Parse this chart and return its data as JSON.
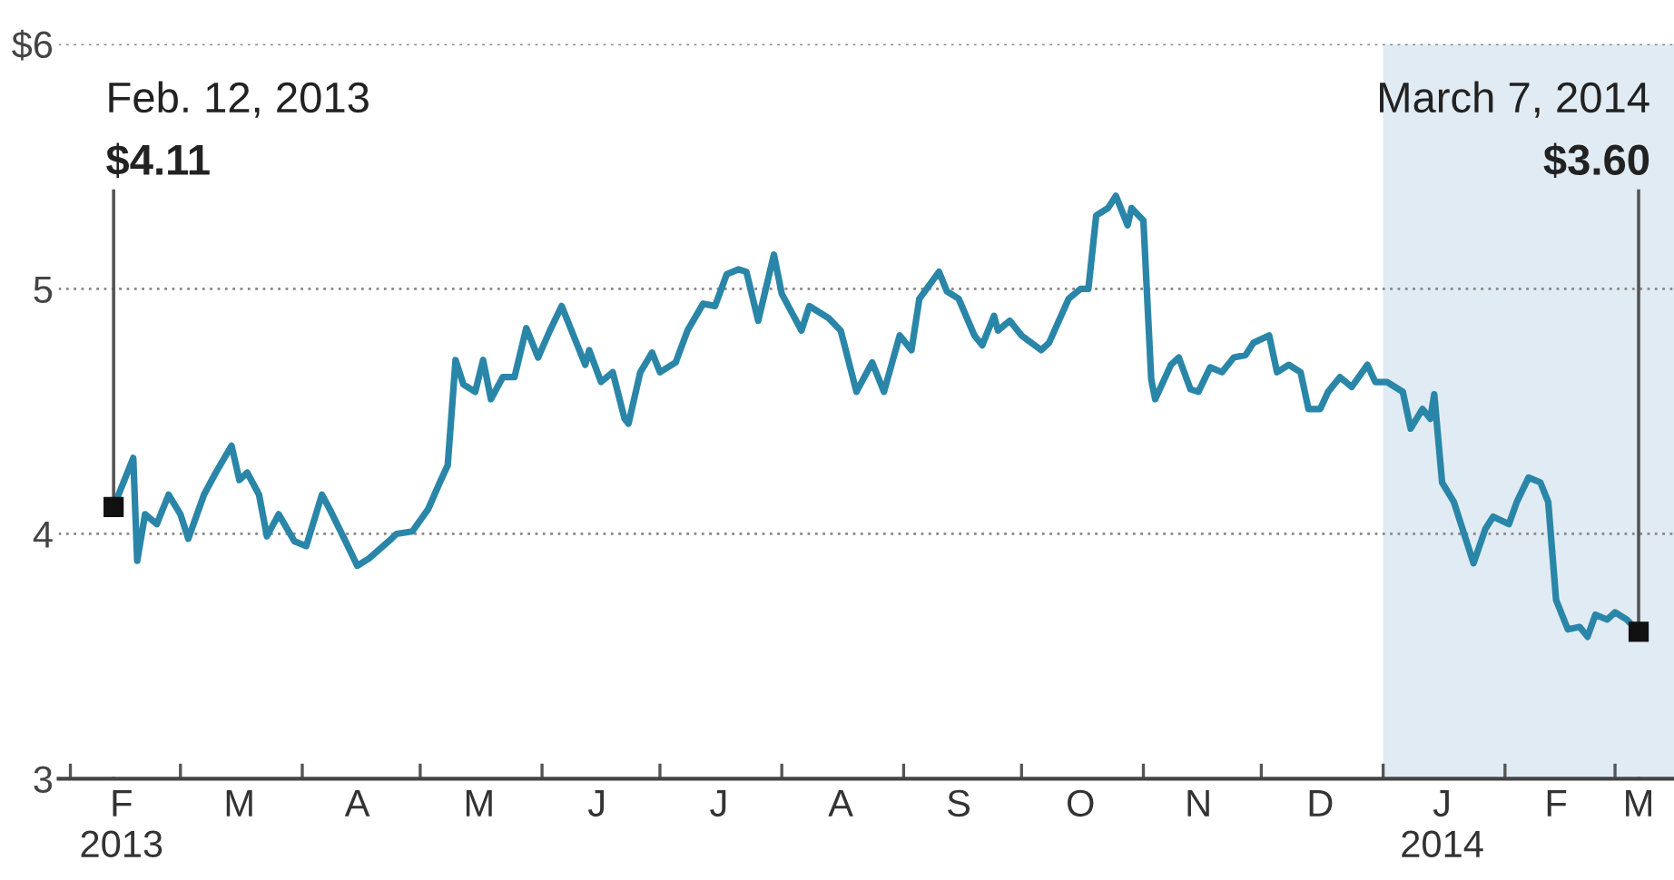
{
  "chart_data": {
    "type": "line",
    "x": [
      "2013-02-12",
      "2013-02-17",
      "2013-02-18",
      "2013-02-20",
      "2013-02-23",
      "2013-02-26",
      "2013-03-01",
      "2013-03-03",
      "2013-03-05",
      "2013-03-07",
      "2013-03-10",
      "2013-03-14",
      "2013-03-16",
      "2013-03-18",
      "2013-03-21",
      "2013-03-23",
      "2013-03-26",
      "2013-03-30",
      "2013-04-02",
      "2013-04-06",
      "2013-04-08",
      "2013-04-12",
      "2013-04-15",
      "2013-04-18",
      "2013-04-23",
      "2013-04-25",
      "2013-04-29",
      "2013-05-03",
      "2013-05-06",
      "2013-05-08",
      "2013-05-10",
      "2013-05-12",
      "2013-05-15",
      "2013-05-17",
      "2013-05-19",
      "2013-05-22",
      "2013-05-25",
      "2013-05-28",
      "2013-05-31",
      "2013-06-03",
      "2013-06-06",
      "2013-06-09",
      "2013-06-12",
      "2013-06-13",
      "2013-06-16",
      "2013-06-19",
      "2013-06-22",
      "2013-06-23",
      "2013-06-26",
      "2013-06-29",
      "2013-07-01",
      "2013-07-05",
      "2013-07-08",
      "2013-07-12",
      "2013-07-15",
      "2013-07-18",
      "2013-07-21",
      "2013-07-23",
      "2013-07-26",
      "2013-07-30",
      "2013-08-01",
      "2013-08-06",
      "2013-08-08",
      "2013-08-13",
      "2013-08-16",
      "2013-08-20",
      "2013-08-24",
      "2013-08-27",
      "2013-08-31",
      "2013-09-03",
      "2013-09-05",
      "2013-09-10",
      "2013-09-12",
      "2013-09-15",
      "2013-09-19",
      "2013-09-21",
      "2013-09-24",
      "2013-09-25",
      "2013-09-28",
      "2013-10-01",
      "2013-10-06",
      "2013-10-08",
      "2013-10-13",
      "2013-10-16",
      "2013-10-18",
      "2013-10-20",
      "2013-10-23",
      "2013-10-25",
      "2013-10-28",
      "2013-10-29",
      "2013-11-01",
      "2013-11-03",
      "2013-11-04",
      "2013-11-08",
      "2013-11-10",
      "2013-11-13",
      "2013-11-15",
      "2013-11-18",
      "2013-11-21",
      "2013-11-24",
      "2013-11-27",
      "2013-11-29",
      "2013-12-03",
      "2013-12-05",
      "2013-12-08",
      "2013-12-11",
      "2013-12-13",
      "2013-12-16",
      "2013-12-18",
      "2013-12-21",
      "2013-12-24",
      "2013-12-28",
      "2013-12-30",
      "2014-01-02",
      "2014-01-06",
      "2014-01-08",
      "2014-01-11",
      "2014-01-13",
      "2014-01-14",
      "2014-01-16",
      "2014-01-19",
      "2014-01-22",
      "2014-01-24",
      "2014-01-27",
      "2014-01-29",
      "2014-02-02",
      "2014-02-04",
      "2014-02-07",
      "2014-02-10",
      "2014-02-12",
      "2014-02-14",
      "2014-02-17",
      "2014-02-20",
      "2014-02-22",
      "2014-02-24",
      "2014-02-27",
      "2014-03-01",
      "2014-03-04",
      "2014-03-07"
    ],
    "series": [
      {
        "color": "#2a86a8",
        "values": [
          4.11,
          4.31,
          3.89,
          4.08,
          4.04,
          4.16,
          4.08,
          3.98,
          4.07,
          4.16,
          4.25,
          4.36,
          4.22,
          4.25,
          4.16,
          3.99,
          4.08,
          3.97,
          3.95,
          4.16,
          4.1,
          3.97,
          3.87,
          3.9,
          3.97,
          4.0,
          4.01,
          4.1,
          4.21,
          4.28,
          4.71,
          4.61,
          4.58,
          4.71,
          4.55,
          4.64,
          4.64,
          4.84,
          4.72,
          4.83,
          4.93,
          4.81,
          4.69,
          4.75,
          4.62,
          4.66,
          4.47,
          4.45,
          4.66,
          4.74,
          4.66,
          4.7,
          4.83,
          4.94,
          4.93,
          5.06,
          5.08,
          5.07,
          4.87,
          5.14,
          4.98,
          4.83,
          4.93,
          4.88,
          4.83,
          4.58,
          4.7,
          4.58,
          4.81,
          4.75,
          4.96,
          5.07,
          4.99,
          4.96,
          4.81,
          4.77,
          4.89,
          4.83,
          4.87,
          4.81,
          4.75,
          4.78,
          4.96,
          5.0,
          5.0,
          5.3,
          5.33,
          5.38,
          5.26,
          5.33,
          5.28,
          4.63,
          4.55,
          4.69,
          4.72,
          4.59,
          4.58,
          4.68,
          4.66,
          4.72,
          4.73,
          4.78,
          4.81,
          4.66,
          4.69,
          4.66,
          4.51,
          4.51,
          4.58,
          4.64,
          4.6,
          4.69,
          4.62,
          4.62,
          4.58,
          4.43,
          4.51,
          4.47,
          4.57,
          4.21,
          4.13,
          3.98,
          3.88,
          4.02,
          4.07,
          4.04,
          4.13,
          4.23,
          4.21,
          4.13,
          3.73,
          3.61,
          3.62,
          3.58,
          3.67,
          3.65,
          3.68,
          3.65,
          3.6
        ]
      }
    ],
    "xlim": [
      "2013-01-29",
      "2014-03-16"
    ],
    "xticks": [
      {
        "value": "2013-02-01",
        "label": null
      },
      {
        "value": "2013-02-14",
        "label": "F\n2013"
      },
      {
        "value": "2013-03-01",
        "label": null
      },
      {
        "value": "2013-03-16",
        "label": "M"
      },
      {
        "value": "2013-04-01",
        "label": null
      },
      {
        "value": "2013-04-15",
        "label": "A"
      },
      {
        "value": "2013-05-01",
        "label": null
      },
      {
        "value": "2013-05-16",
        "label": "M"
      },
      {
        "value": "2013-06-01",
        "label": null
      },
      {
        "value": "2013-06-15",
        "label": "J"
      },
      {
        "value": "2013-07-01",
        "label": null
      },
      {
        "value": "2013-07-16",
        "label": "J"
      },
      {
        "value": "2013-08-01",
        "label": null
      },
      {
        "value": "2013-08-16",
        "label": "A"
      },
      {
        "value": "2013-09-01",
        "label": null
      },
      {
        "value": "2013-09-15",
        "label": "S"
      },
      {
        "value": "2013-10-01",
        "label": null
      },
      {
        "value": "2013-10-16",
        "label": "O"
      },
      {
        "value": "2013-11-01",
        "label": null
      },
      {
        "value": "2013-11-15",
        "label": "N"
      },
      {
        "value": "2013-12-01",
        "label": null
      },
      {
        "value": "2013-12-16",
        "label": "D"
      },
      {
        "value": "2014-01-01",
        "label": null
      },
      {
        "value": "2014-01-16",
        "label": "J\n2014"
      },
      {
        "value": "2014-02-01",
        "label": null
      },
      {
        "value": "2014-02-14",
        "label": "F"
      },
      {
        "value": "2014-03-01",
        "label": null
      },
      {
        "value": "2014-03-07",
        "label": "M"
      }
    ],
    "ylim": [
      3,
      6
    ],
    "yticks": [
      3,
      4,
      5,
      {
        "value": 6,
        "label": "$6"
      }
    ],
    "grid": "y",
    "bands": [
      {
        "axis": "x",
        "from": "2014-01-01",
        "to": "2014-03-16",
        "color": "#e1ebf3"
      }
    ],
    "annotations": [
      "Feb. 12, 2013",
      {
        "text": "$4.11",
        "x": "2013-02-12",
        "y": 4.11
      },
      "March 7, 2014",
      {
        "text": "$3.60",
        "x": "2014-03-07",
        "y": 3.6
      }
    ]
  }
}
